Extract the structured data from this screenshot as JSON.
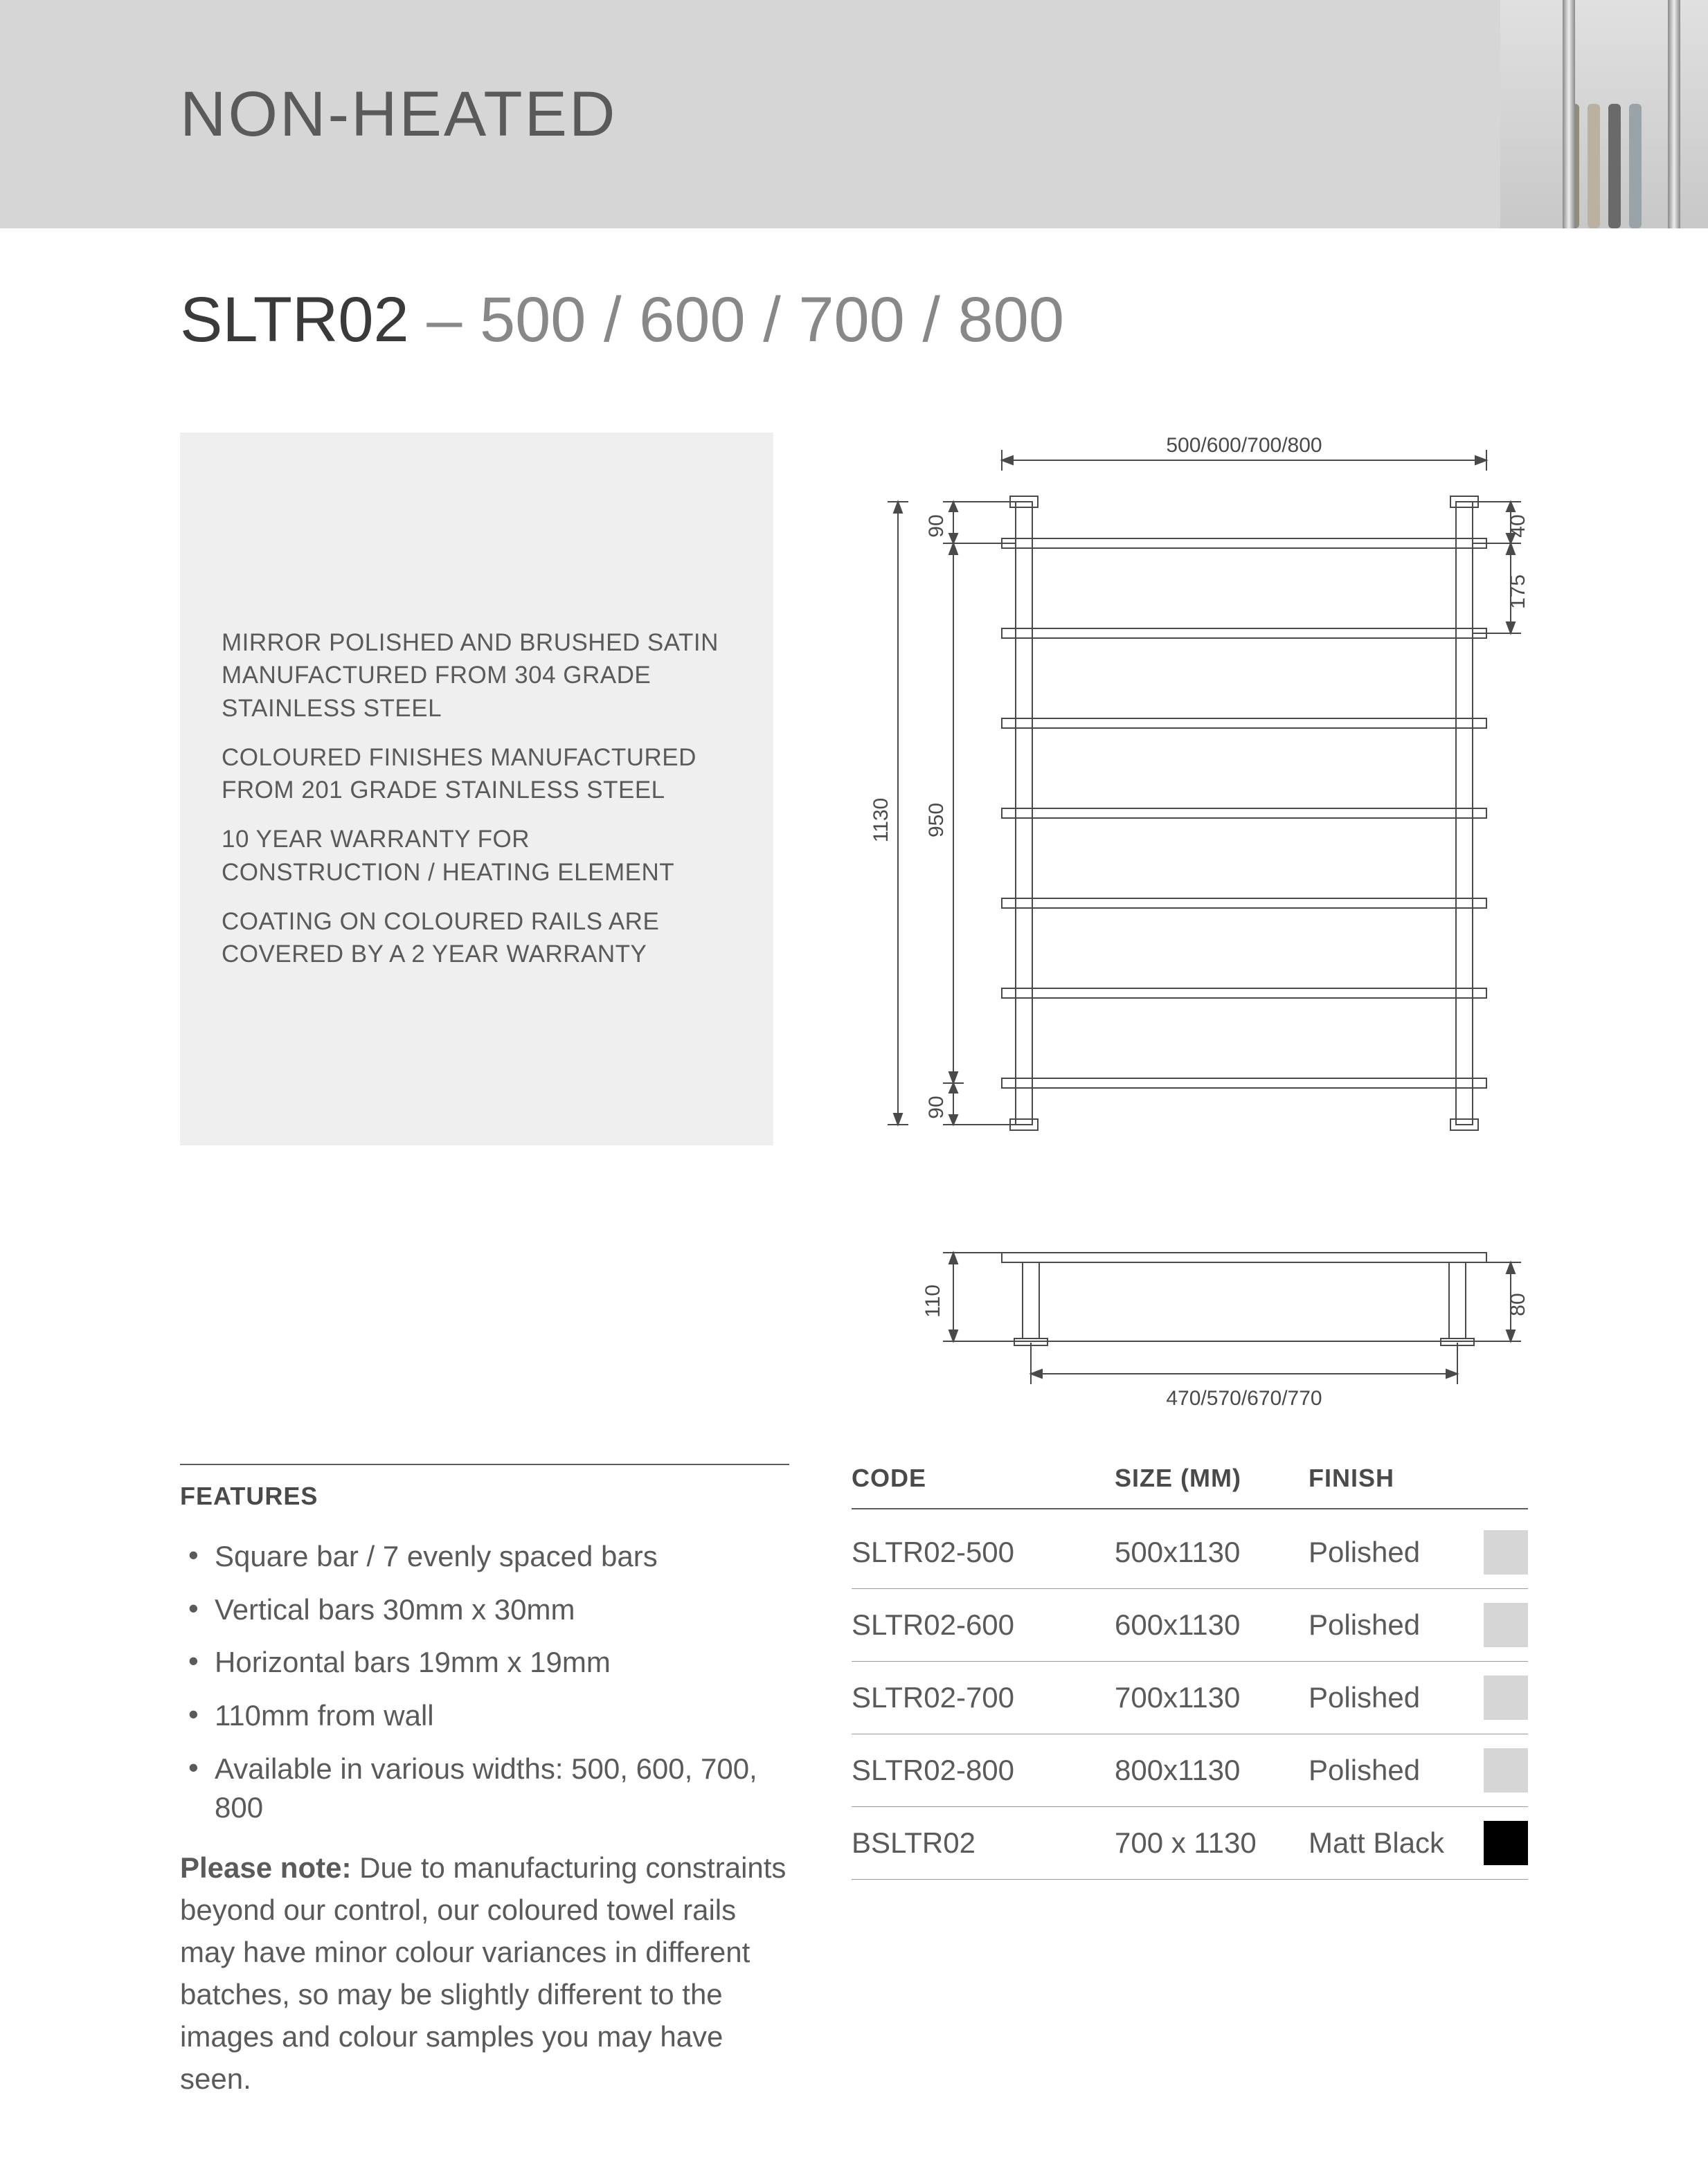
{
  "header": {
    "title": "NON-HEATED"
  },
  "product": {
    "code": "SLTR02",
    "variants_label": " – 500 / 600 / 700 / 800"
  },
  "description": {
    "lines": [
      "MIRROR POLISHED AND BRUSHED SATIN MANUFACTURED FROM 304 GRADE STAINLESS STEEL",
      "COLOURED FINISHES MANUFACTURED FROM 201 GRADE STAINLESS STEEL",
      "10 YEAR WARRANTY FOR CONSTRUCTION / HEATING ELEMENT",
      "COATING ON COLOURED RAILS ARE COVERED BY A 2 YEAR WARRANTY"
    ]
  },
  "diagram": {
    "front": {
      "width_label": "500/600/700/800",
      "height_outer": "1130",
      "height_inner": "950",
      "top_margin": "90",
      "bottom_margin": "90",
      "right_top": "40",
      "right_gap": "175",
      "bars": 7,
      "line_color": "#4a4a4a",
      "line_width": 2,
      "font_size": 30
    },
    "side": {
      "depth_top": "110",
      "depth_right": "80",
      "base_label": "470/570/670/770"
    }
  },
  "features": {
    "heading": "FEATURES",
    "items": [
      "Square bar / 7 evenly spaced bars",
      "Vertical bars 30mm x 30mm",
      "Horizontal bars 19mm x 19mm",
      "110mm from wall",
      "Available in various widths: 500, 600, 700, 800"
    ],
    "note_label": "Please note:",
    "note_body": " Due to manufacturing constraints beyond our control, our coloured towel rails may have minor colour variances in different batches, so may be slightly different to the images and colour samples you may have seen."
  },
  "table": {
    "head": {
      "code": "CODE",
      "size": "SIZE (MM)",
      "finish": "FINISH"
    },
    "rows": [
      {
        "code": "SLTR02-500",
        "size": "500x1130",
        "finish": "Polished",
        "swatch": "#d6d6d6"
      },
      {
        "code": "SLTR02-600",
        "size": "600x1130",
        "finish": "Polished",
        "swatch": "#d6d6d6"
      },
      {
        "code": "SLTR02-700",
        "size": "700x1130",
        "finish": "Polished",
        "swatch": "#d6d6d6"
      },
      {
        "code": "SLTR02-800",
        "size": "800x1130",
        "finish": "Polished",
        "swatch": "#d6d6d6"
      },
      {
        "code": "BSLTR02",
        "size": "700 x 1130",
        "finish": "Matt Black",
        "swatch": "#000000"
      }
    ]
  },
  "photo": {
    "towel_colors": [
      "#8f8a7a",
      "#b9b2a0",
      "#6a6a6a",
      "#9aa3a8"
    ]
  }
}
